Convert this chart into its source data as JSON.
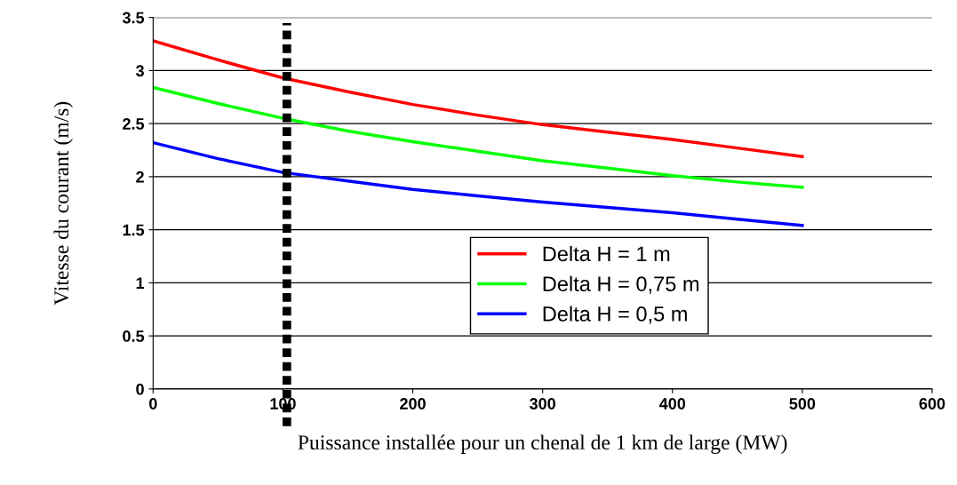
{
  "chart_data": {
    "type": "line",
    "xlabel": "Puissance installée pour un chenal de 1 km de large (MW)",
    "ylabel": "Vitesse du courant (m/s)",
    "x": [
      0,
      50,
      100,
      150,
      200,
      250,
      300,
      350,
      400,
      450,
      500
    ],
    "series": [
      {
        "name": "Delta H = 1 m",
        "color": "#ff0000",
        "values": [
          3.28,
          3.1,
          2.93,
          2.8,
          2.68,
          2.58,
          2.49,
          2.42,
          2.35,
          2.27,
          2.19
        ]
      },
      {
        "name": "Delta H = 0,75 m",
        "color": "#00ff00",
        "values": [
          2.84,
          2.69,
          2.55,
          2.43,
          2.33,
          2.24,
          2.15,
          2.08,
          2.01,
          1.95,
          1.9
        ]
      },
      {
        "name": "Delta H = 0,5 m",
        "color": "#0000ff",
        "values": [
          2.32,
          2.17,
          2.04,
          1.96,
          1.88,
          1.82,
          1.76,
          1.71,
          1.66,
          1.6,
          1.54
        ]
      }
    ],
    "xlim": [
      0,
      600
    ],
    "xticks": [
      0,
      100,
      200,
      300,
      400,
      500,
      600
    ],
    "ylim": [
      0,
      3.5
    ],
    "yticks": [
      0,
      0.5,
      1,
      1.5,
      2,
      2.5,
      3,
      3.5
    ],
    "ref_lines": [
      {
        "axis": "x",
        "value": 103,
        "color": "#000000",
        "line_style": "dotted"
      }
    ],
    "grid": "y",
    "legend": "bottom",
    "marker": "none",
    "line_style": "solid"
  }
}
